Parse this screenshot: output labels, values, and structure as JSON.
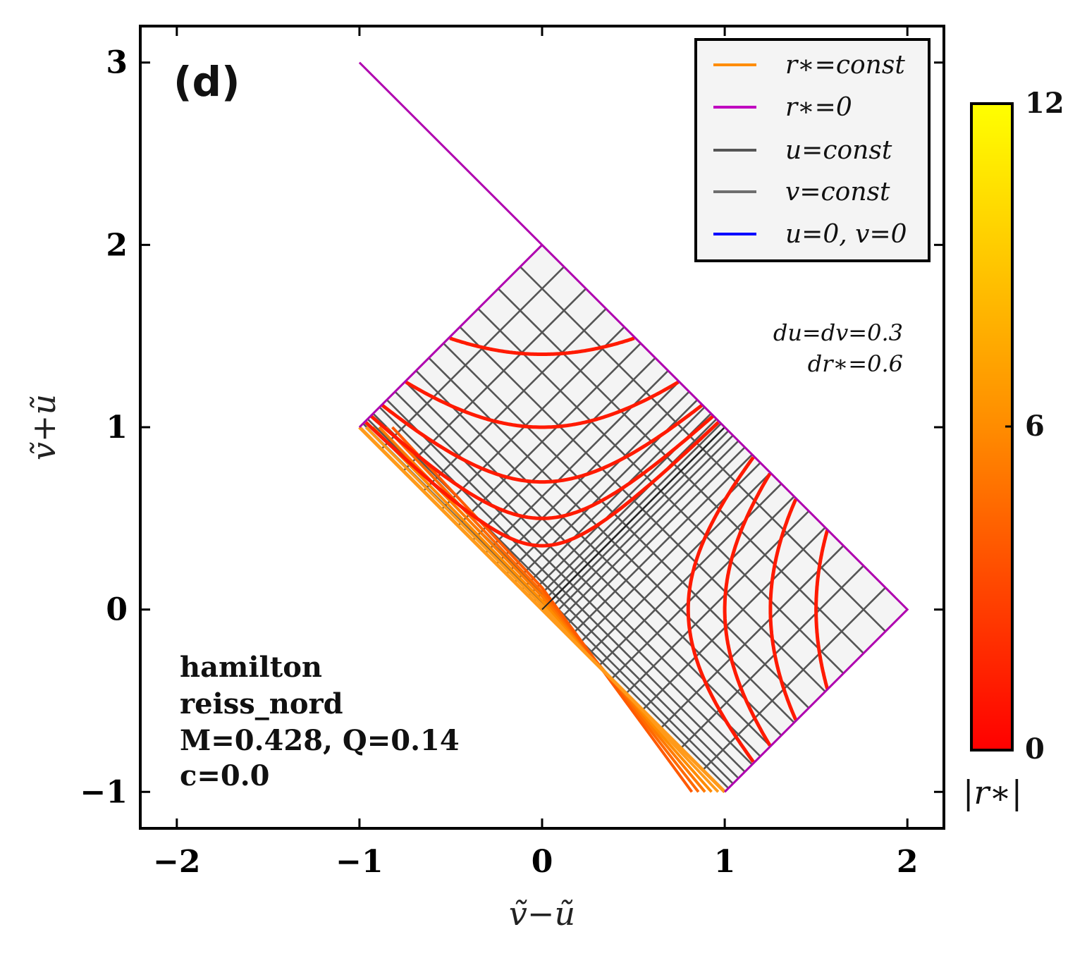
{
  "chart_data": {
    "type": "line",
    "panel_label": "(d)",
    "xlabel": "ṽ−ũ",
    "ylabel": "ṽ+ũ",
    "xlim": [
      -2.2,
      2.2
    ],
    "ylim": [
      -1.2,
      3.2
    ],
    "xticks": [
      -2,
      -1,
      0,
      1,
      2
    ],
    "xtick_labels": [
      "−2",
      "−1",
      "0",
      "1",
      "2"
    ],
    "yticks": [
      -1,
      0,
      1,
      2,
      3
    ],
    "ytick_labels": [
      "−1",
      "0",
      "1",
      "2",
      "3"
    ],
    "legend": {
      "placement": "top-right",
      "entries": [
        {
          "label": "r∗=const",
          "color": "#ff8c00"
        },
        {
          "label": "r∗=0",
          "color": "#c000c0"
        },
        {
          "label": "u=const",
          "color": "#555555"
        },
        {
          "label": "v=const",
          "color": "#6e6e6e"
        },
        {
          "label": "u=0, v=0",
          "color": "#0000ff"
        }
      ]
    },
    "annotation": [
      "du=dv=0.3",
      "dr∗=0.6"
    ],
    "info": [
      "hamilton",
      "reiss_nord",
      "M=0.428, Q=0.14",
      "c=0.0"
    ],
    "colorbar": {
      "label": "|r∗|",
      "min": 0,
      "max": 12,
      "ticks": [
        0,
        6,
        12
      ],
      "tick_labels": [
        "0",
        "6",
        "12"
      ],
      "colors": [
        "#ff0000",
        "#ff8c00",
        "#ffff00"
      ]
    },
    "regions": [
      {
        "name": "upper-square",
        "vertices": [
          [
            -1,
            1
          ],
          [
            0,
            2
          ],
          [
            1,
            1
          ],
          [
            0,
            0
          ]
        ]
      },
      {
        "name": "right-square",
        "vertices": [
          [
            0,
            0
          ],
          [
            1,
            1
          ],
          [
            2,
            0
          ],
          [
            1,
            -1
          ]
        ]
      }
    ],
    "boundary_r_zero": [
      [
        -1,
        3
      ],
      [
        0,
        2
      ],
      [
        1,
        1
      ],
      [
        2,
        0
      ],
      [
        1,
        -1
      ]
    ],
    "boundary_left": [
      [
        -1,
        1
      ],
      [
        0,
        2
      ]
    ],
    "horizon": [
      [
        -1,
        1
      ],
      [
        0,
        0
      ],
      [
        1,
        -1
      ]
    ],
    "horizon_inner": [
      [
        0,
        0
      ],
      [
        1,
        1
      ]
    ],
    "grid_lines": {
      "du": 0.3,
      "dv": 0.3
    },
    "rstar_curves_upper_apex_y": [
      1.4,
      1.0,
      0.7,
      0.5,
      0.35
    ],
    "rstar_curves_right_apex_x": [
      1.5,
      1.25,
      1.0,
      0.8
    ]
  },
  "colors": {
    "region_fill": "#f4f4f4",
    "grid": "#555555",
    "rstar_curve": "#ff1a00",
    "boundary": "#b000b0",
    "horizon": "#ff9a1a"
  }
}
